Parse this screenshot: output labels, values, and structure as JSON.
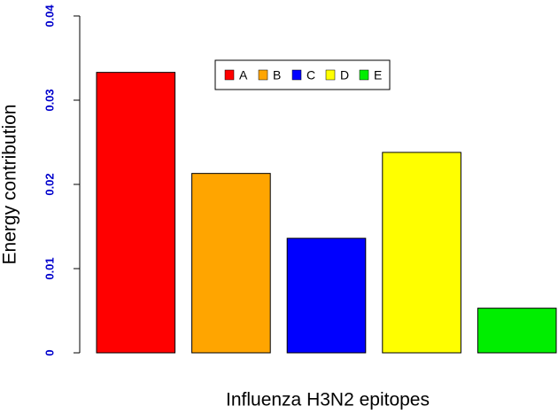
{
  "chart_data": {
    "type": "bar",
    "xlabel": "Influenza H3N2 epitopes",
    "ylabel": "Energy contribution",
    "categories": [
      "A",
      "B",
      "C",
      "D",
      "E"
    ],
    "values": [
      0.0333,
      0.0213,
      0.0136,
      0.0238,
      0.0053
    ],
    "colors": [
      "#ff0000",
      "#ffa500",
      "#0000ff",
      "#ffff00",
      "#00ee00"
    ],
    "ylim": [
      0,
      0.04
    ],
    "yticks": [
      0,
      0.01,
      0.02,
      0.03,
      0.04
    ],
    "legend": "top"
  }
}
